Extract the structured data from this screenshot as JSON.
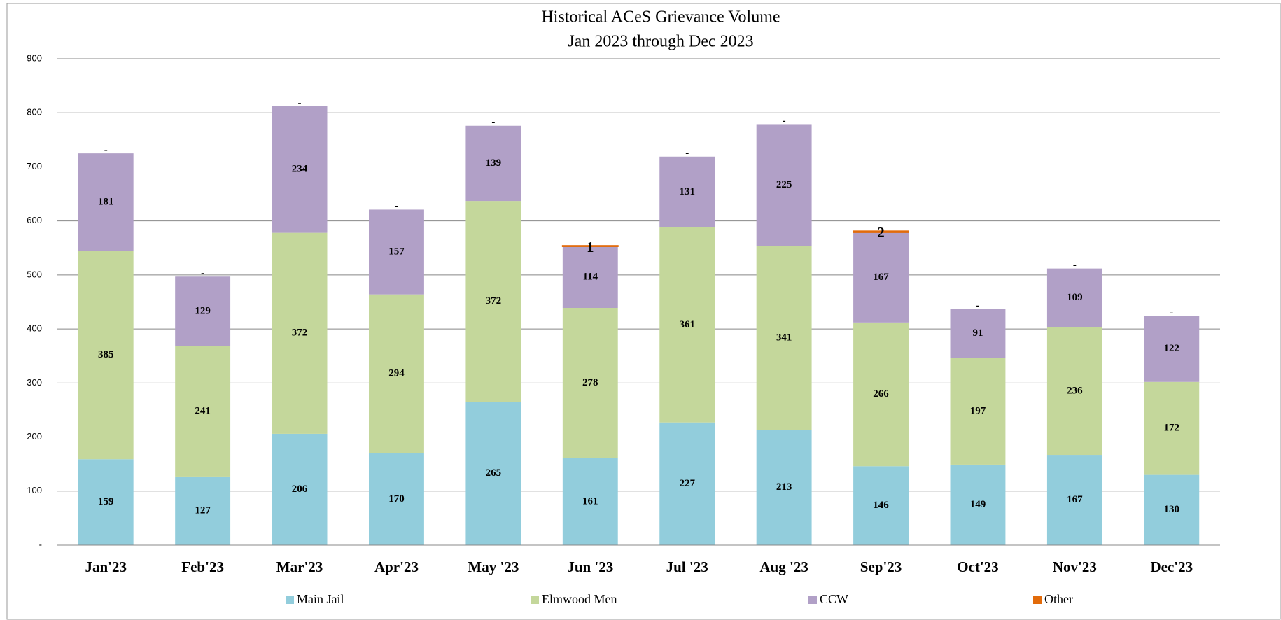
{
  "chart_data": {
    "type": "stacked_bar",
    "title": "Historical ACeS Grievance Volume",
    "subtitle": "Jan 2023  through Dec 2023",
    "categories": [
      "Jan'23",
      "Feb'23",
      "Mar'23",
      "Apr'23",
      "May '23",
      "Jun '23",
      "Jul '23",
      "Aug '23",
      "Sep'23",
      "Oct'23",
      "Nov'23",
      "Dec'23"
    ],
    "series": [
      {
        "name": "Main Jail",
        "color": "#92cddc",
        "values": [
          159,
          127,
          206,
          170,
          265,
          161,
          227,
          213,
          146,
          149,
          167,
          130
        ]
      },
      {
        "name": "Elmwood Men",
        "color": "#c4d79b",
        "values": [
          385,
          241,
          372,
          294,
          372,
          278,
          361,
          341,
          266,
          197,
          236,
          172
        ]
      },
      {
        "name": "CCW",
        "color": "#b1a0c7",
        "values": [
          181,
          129,
          234,
          157,
          139,
          114,
          131,
          225,
          167,
          91,
          109,
          122
        ]
      },
      {
        "name": "Other",
        "color": "#e26b0a",
        "values": [
          0,
          0,
          0,
          0,
          0,
          1,
          0,
          0,
          2,
          0,
          0,
          0
        ],
        "value_labels": [
          "-",
          "-",
          "-",
          "-",
          "-",
          "1",
          "-",
          "-",
          "2",
          "-",
          "-",
          "-"
        ]
      }
    ],
    "ylim": [
      0,
      900
    ],
    "yticks": [
      {
        "value": 0,
        "label": "-"
      },
      100,
      200,
      300,
      400,
      500,
      600,
      700,
      800,
      900
    ],
    "grid": true,
    "legend": "bottom"
  }
}
